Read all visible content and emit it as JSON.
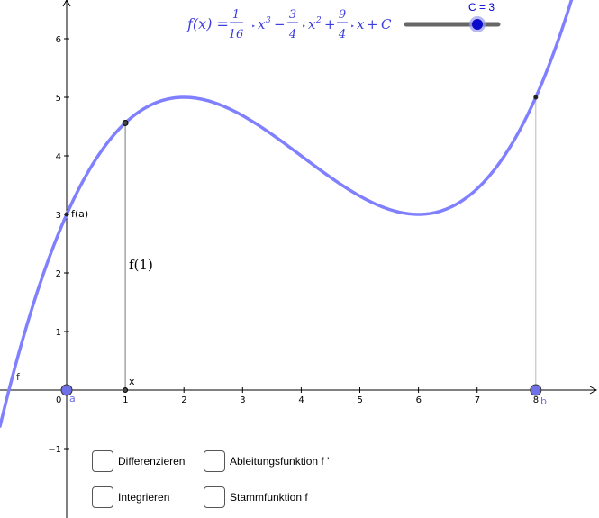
{
  "formula": {
    "lhs": "f(x) =",
    "frac1_num": "1",
    "frac1_den": "16",
    "term1": "x",
    "exp1": "3",
    "minus": "−",
    "frac2_num": "3",
    "frac2_den": "4",
    "term2": "x",
    "exp2": "2",
    "plus1": "+",
    "frac3_num": "9",
    "frac3_den": "4",
    "term3": "x",
    "plus2": "+",
    "const": "C"
  },
  "slider": {
    "label": "C = 3",
    "value": 3
  },
  "labels": {
    "f_curve": "f",
    "f_of_a": "f(a)",
    "f_of_1": "f(1)",
    "point_x": "x",
    "point_a": "a",
    "point_b": "b"
  },
  "axes": {
    "x_ticks": [
      "0",
      "1",
      "2",
      "3",
      "4",
      "5",
      "6",
      "7",
      "8"
    ],
    "y_ticks": [
      "6",
      "5",
      "4",
      "3",
      "2",
      "1",
      "−1"
    ],
    "xlim": [
      -1.1,
      9.05
    ],
    "ylim": [
      -2.1,
      6.6
    ]
  },
  "function": {
    "a3": 0.0625,
    "a2": -0.75,
    "a1": 2.25,
    "C": 3,
    "a": 0,
    "b": 8,
    "x1": 1
  },
  "colors": {
    "curve": "#8080ff",
    "point_fill": "#7070e8",
    "axis": "#000000"
  },
  "checkboxes": [
    {
      "label": "Differenzieren",
      "checked": false
    },
    {
      "label": "Ableitungsfunktion f '",
      "checked": false
    },
    {
      "label": "Integrieren",
      "checked": false
    },
    {
      "label": "Stammfunktion f",
      "checked": false
    }
  ]
}
